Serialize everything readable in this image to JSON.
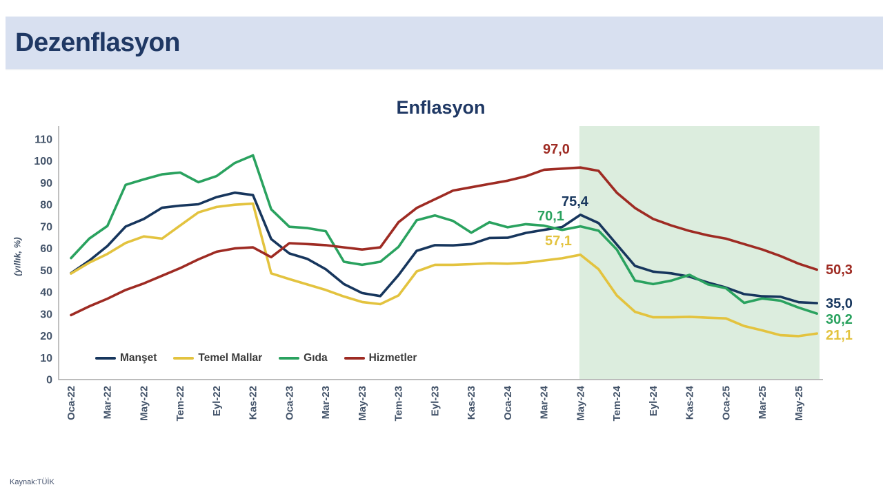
{
  "page": {
    "header_title": "Dezenflasyon",
    "source": "Kaynak:TÜİK",
    "colors": {
      "header_bg": "#d8e0f0",
      "header_text": "#1f3864",
      "axis_color": "#a6a6a6",
      "tick_label_color": "#44546a"
    }
  },
  "chart_data": {
    "type": "line",
    "title": "Enflasyon",
    "ylabel": "(yıllık, %)",
    "ylim": [
      0,
      110
    ],
    "ytick_step": 10,
    "grid": false,
    "legend_position": "inside-bottom-left",
    "x_tick_every": 2,
    "highlight_from_index": 28,
    "highlight_color": "#dcedde",
    "highlight_note": "shaded region from May-24 onward",
    "x": [
      "Oca-22",
      "Şub-22",
      "Mar-22",
      "Nis-22",
      "May-22",
      "Haz-22",
      "Tem-22",
      "Ağu-22",
      "Eyl-22",
      "Eki-22",
      "Kas-22",
      "Ara-22",
      "Oca-23",
      "Şub-23",
      "Mar-23",
      "Nis-23",
      "May-23",
      "Haz-23",
      "Tem-23",
      "Ağu-23",
      "Eyl-23",
      "Eki-23",
      "Kas-23",
      "Ara-23",
      "Oca-24",
      "Şub-24",
      "Mar-24",
      "Nis-24",
      "May-24",
      "Haz-24",
      "Tem-24",
      "Ağu-24",
      "Eyl-24",
      "Eki-24",
      "Kas-24",
      "Ara-24",
      "Oca-25",
      "Şub-25",
      "Mar-25",
      "Nis-25",
      "May-25",
      "Haz-25"
    ],
    "series": [
      {
        "name": "Manşet",
        "color": "#17365d",
        "values": [
          48.7,
          54.4,
          61.1,
          70.0,
          73.5,
          78.6,
          79.6,
          80.2,
          83.5,
          85.5,
          84.4,
          64.3,
          57.7,
          55.2,
          50.5,
          43.7,
          39.6,
          38.2,
          47.8,
          58.9,
          61.5,
          61.4,
          62.0,
          64.8,
          64.9,
          67.1,
          68.5,
          69.8,
          75.4,
          71.6,
          61.8,
          52.0,
          49.4,
          48.6,
          47.1,
          44.4,
          42.1,
          39.1,
          38.1,
          37.9,
          35.4,
          35.0
        ]
      },
      {
        "name": "Temel Mallar",
        "color": "#e3c33f",
        "values": [
          48.5,
          53.5,
          57.5,
          62.5,
          65.5,
          64.5,
          70.5,
          76.5,
          79.0,
          80.0,
          80.5,
          48.6,
          46.0,
          43.5,
          41.0,
          38.0,
          35.5,
          34.5,
          38.5,
          49.5,
          52.5,
          52.5,
          52.8,
          53.2,
          53.0,
          53.5,
          54.5,
          55.5,
          57.1,
          50.5,
          38.5,
          31.0,
          28.5,
          28.5,
          28.7,
          28.3,
          28.0,
          24.5,
          22.5,
          20.3,
          19.9,
          21.1
        ]
      },
      {
        "name": "Gıda",
        "color": "#2aa25f",
        "values": [
          55.6,
          64.5,
          70.3,
          89.1,
          91.6,
          93.9,
          94.7,
          90.3,
          93.1,
          99.1,
          102.6,
          77.9,
          69.9,
          69.3,
          67.9,
          53.9,
          52.5,
          53.9,
          60.7,
          72.9,
          75.1,
          72.6,
          67.2,
          72.0,
          69.7,
          71.1,
          70.4,
          68.5,
          70.1,
          68.1,
          59.5,
          45.3,
          43.7,
          45.3,
          47.9,
          43.6,
          41.8,
          35.1,
          37.1,
          36.1,
          32.9,
          30.2
        ]
      },
      {
        "name": "Hizmetler",
        "color": "#9e2b23",
        "values": [
          29.5,
          33.5,
          37.0,
          41.0,
          44.0,
          47.5,
          51.0,
          55.0,
          58.5,
          60.0,
          60.5,
          56.0,
          62.4,
          62.0,
          61.5,
          60.5,
          59.5,
          60.5,
          72.0,
          78.5,
          82.5,
          86.5,
          88.0,
          89.5,
          91.0,
          93.0,
          96.0,
          96.5,
          97.0,
          95.5,
          85.5,
          78.5,
          73.5,
          70.5,
          68.0,
          66.0,
          64.5,
          62.0,
          59.5,
          56.5,
          53.0,
          50.3
        ]
      }
    ],
    "annotations": {
      "peaks": [
        {
          "series": "Hizmetler",
          "x": "May-24",
          "text": "97,0"
        },
        {
          "series": "Manşet",
          "x": "May-24",
          "text": "75,4"
        },
        {
          "series": "Gıda",
          "x": "May-24",
          "text": "70,1"
        },
        {
          "series": "Temel Mallar",
          "x": "May-24",
          "text": "57,1"
        }
      ],
      "latest": [
        {
          "series": "Hizmetler",
          "x": "Haz-25",
          "text": "50,3"
        },
        {
          "series": "Manşet",
          "x": "Haz-25",
          "text": "35,0"
        },
        {
          "series": "Gıda",
          "x": "Haz-25",
          "text": "30,2"
        },
        {
          "series": "Temel Mallar",
          "x": "Haz-25",
          "text": "21,1"
        }
      ]
    }
  }
}
